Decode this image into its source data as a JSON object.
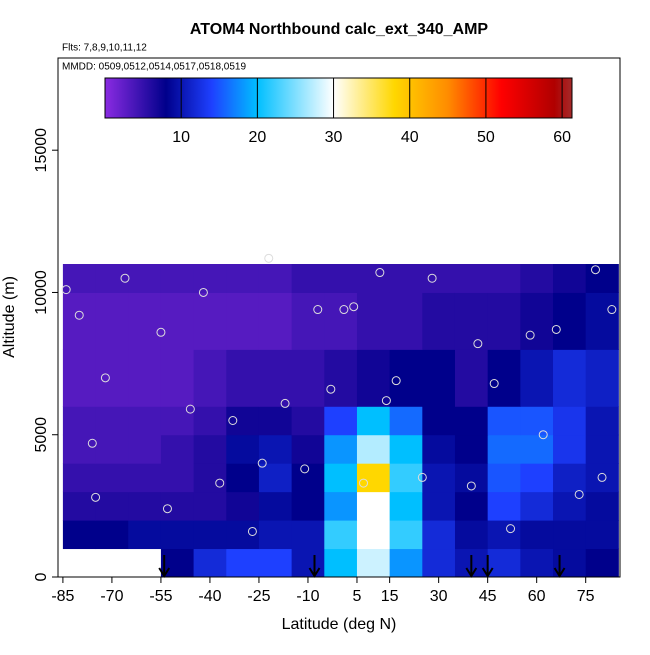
{
  "chart_data": {
    "type": "heatmap",
    "title": "ATOM4 Northbound calc_ext_340_AMP",
    "subtitle_flights": "Flts: 7,8,9,10,11,12",
    "subtitle_dates": "MMDD: 0509,0512,0514,0517,0518,0519",
    "x_label": "Latitude (deg N)",
    "y_label": "Altitude (m)",
    "xlim": [
      -86.5,
      85.5
    ],
    "ylim": [
      0,
      18240
    ],
    "xticks": [
      -85,
      -70,
      -55,
      -40,
      -25,
      -10,
      5,
      15,
      30,
      45,
      60,
      75
    ],
    "yticks": [
      0,
      5000,
      10000,
      15000
    ],
    "x_edges": [
      -85,
      -75,
      -65,
      -55,
      -45,
      -35,
      -25,
      -15,
      -5,
      5,
      15,
      25,
      35,
      45,
      55,
      65,
      75,
      85
    ],
    "y_edges": [
      0,
      1000,
      2000,
      3000,
      4000,
      5000,
      6000,
      8000,
      10000,
      11000
    ],
    "values": [
      [
        null,
        null,
        null,
        8,
        12,
        14,
        14,
        10,
        20,
        28,
        18,
        12,
        10,
        12,
        10,
        9,
        8
      ],
      [
        8,
        8,
        9,
        9,
        9,
        9,
        10,
        10,
        22,
        30,
        22,
        12,
        9,
        10,
        9,
        9,
        9
      ],
      [
        6,
        6,
        6,
        6,
        6,
        7,
        9,
        8,
        18,
        30,
        20,
        10,
        8,
        14,
        12,
        10,
        9
      ],
      [
        5,
        5,
        5,
        5,
        6,
        8,
        11,
        8,
        20,
        38,
        22,
        10,
        9,
        15,
        14,
        11,
        10
      ],
      [
        4,
        4,
        4,
        5,
        6,
        9,
        10,
        7,
        18,
        27,
        20,
        9,
        8,
        16,
        16,
        13,
        10
      ],
      [
        4,
        4,
        4,
        4,
        5,
        7,
        7,
        6,
        14,
        20,
        16,
        8,
        8,
        15,
        15,
        13,
        10
      ],
      [
        3,
        3,
        3,
        3,
        4,
        5,
        5,
        5,
        6,
        7,
        8,
        8,
        6,
        8,
        10,
        12,
        11
      ],
      [
        3,
        3,
        3,
        3,
        3,
        3,
        3,
        4,
        4,
        5,
        5,
        6,
        6,
        6,
        7,
        8,
        9
      ],
      [
        4,
        4,
        4,
        4,
        4,
        4,
        4,
        5,
        5,
        5,
        5,
        5,
        5,
        5,
        6,
        7,
        8
      ]
    ],
    "clim": [
      0,
      61.3
    ],
    "cticks": [
      10,
      20,
      30,
      40,
      50,
      60
    ],
    "colorscale": [
      [
        0,
        "#8a2be2"
      ],
      [
        8,
        "#00008b"
      ],
      [
        14,
        "#1e40ff"
      ],
      [
        20,
        "#00bfff"
      ],
      [
        30,
        "#ffffff"
      ],
      [
        38,
        "#ffd700"
      ],
      [
        45,
        "#ff8c00"
      ],
      [
        52,
        "#ff0000"
      ],
      [
        59,
        "#b00000"
      ],
      [
        61.3,
        "#a52a2a"
      ]
    ],
    "points": {
      "x": [
        -84,
        -80,
        -76,
        -75,
        -72,
        -66,
        -55,
        -53,
        -46,
        -42,
        -37,
        -33,
        -27,
        -24,
        -22,
        -17,
        -11,
        -7,
        -3,
        1,
        4,
        7,
        12,
        14,
        17,
        25,
        28,
        40,
        42,
        47,
        52,
        58,
        62,
        66,
        73,
        78,
        80,
        83
      ],
      "y": [
        10100,
        9200,
        4700,
        2800,
        7000,
        10500,
        8600,
        2400,
        5900,
        10000,
        3300,
        5500,
        1600,
        4000,
        11200,
        6100,
        3800,
        9400,
        6600,
        9400,
        9500,
        3300,
        10700,
        6200,
        6900,
        3500,
        10500,
        3200,
        8200,
        6800,
        1700,
        8500,
        5000,
        8700,
        2900,
        10800,
        3500,
        9400
      ]
    },
    "arrows_x": [
      -54,
      -8,
      40,
      45,
      67
    ]
  }
}
